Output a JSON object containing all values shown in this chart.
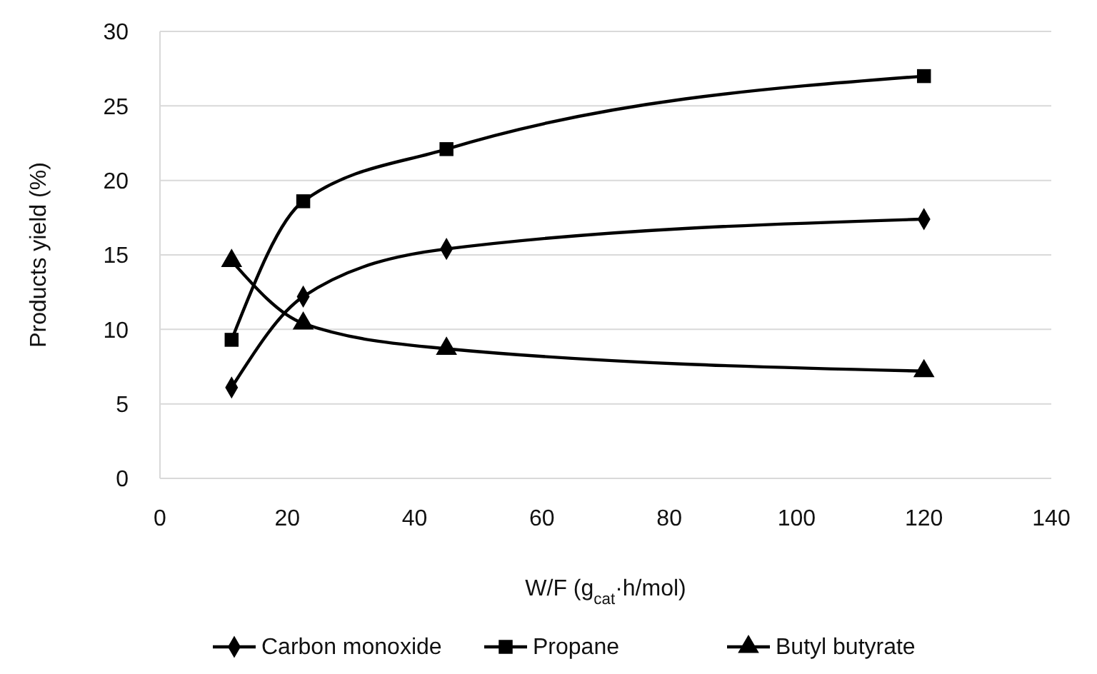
{
  "chart_data": {
    "type": "line",
    "xlabel": "W/F (g$_{cat}$·h/mol)",
    "ylabel": "Products yield (%)",
    "x": [
      11.25,
      22.5,
      45,
      120
    ],
    "xlim": [
      0,
      140
    ],
    "xticks": [
      0,
      20,
      40,
      60,
      80,
      100,
      120,
      140
    ],
    "ylim": [
      0,
      30
    ],
    "yticks": [
      0,
      5,
      10,
      15,
      20,
      25,
      30
    ],
    "grid": "y",
    "legend": "bottom",
    "line_style": "solid",
    "series": [
      {
        "name": "Carbon monoxide",
        "color": "#000000",
        "marker": "diamond",
        "values": [
          6.1,
          12.2,
          15.4,
          17.4
        ]
      },
      {
        "name": "Propane",
        "color": "#000000",
        "marker": "square",
        "values": [
          9.3,
          18.6,
          22.1,
          27.0
        ]
      },
      {
        "name": "Butyl butyrate",
        "color": "#000000",
        "marker": "triangle",
        "values": [
          14.6,
          10.4,
          8.7,
          7.2
        ]
      }
    ]
  }
}
